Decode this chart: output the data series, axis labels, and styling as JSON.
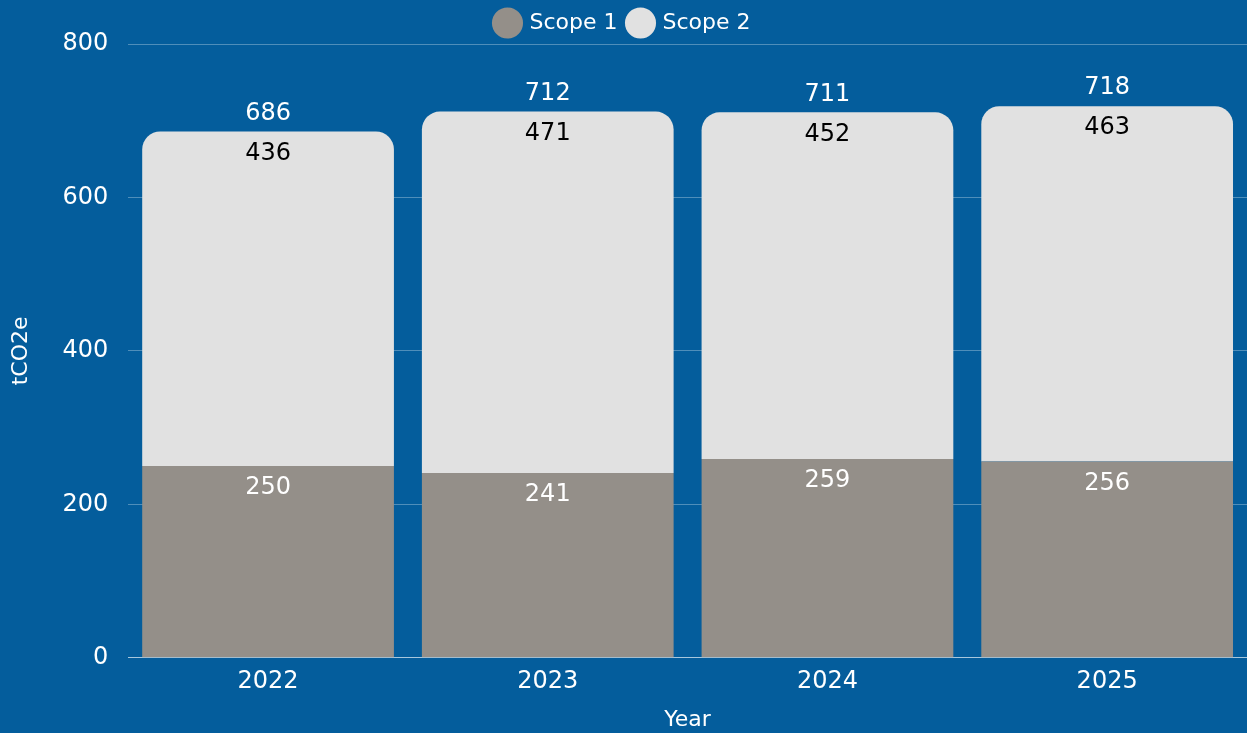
{
  "chart_data": {
    "type": "bar",
    "stacked": true,
    "xlabel": "Year",
    "ylabel": "tCO2e",
    "categories": [
      "2022",
      "2023",
      "2024",
      "2025"
    ],
    "series": [
      {
        "name": "Scope 1",
        "color": "#948f89",
        "values": [
          250,
          241,
          259,
          256
        ]
      },
      {
        "name": "Scope 2",
        "color": "#e1e1e1",
        "values": [
          436,
          471,
          452,
          463
        ]
      }
    ],
    "totals": [
      "686",
      "712",
      "711",
      "718"
    ],
    "ylim": [
      0,
      800
    ],
    "yticks": [
      0,
      200,
      400,
      600,
      800
    ],
    "grid": "y",
    "legend": "top",
    "data_labels": true
  }
}
